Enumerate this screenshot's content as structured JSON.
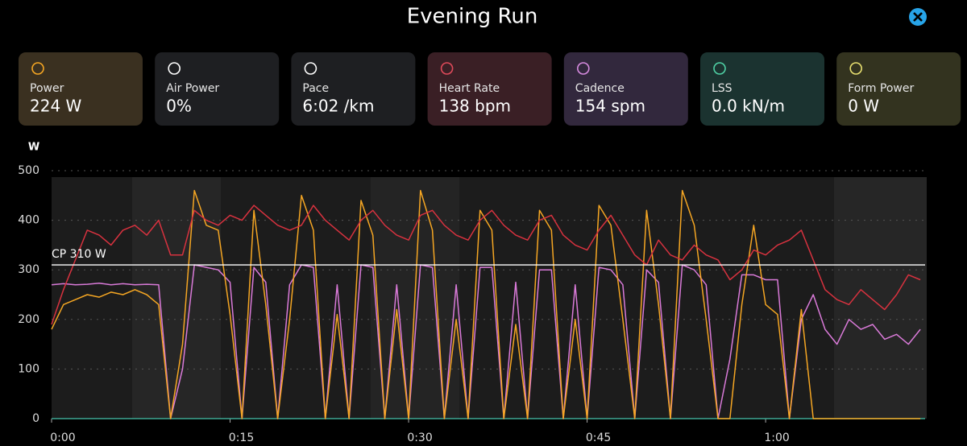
{
  "header": {
    "title": "Evening Run"
  },
  "metrics": [
    {
      "label": "Power",
      "value": "224 W"
    },
    {
      "label": "Air Power",
      "value": "0%"
    },
    {
      "label": "Pace",
      "value": "6:02 /km"
    },
    {
      "label": "Heart Rate",
      "value": "138 bpm"
    },
    {
      "label": "Cadence",
      "value": "154 spm"
    },
    {
      "label": "LSS",
      "value": "0.0 kN/m"
    },
    {
      "label": "Form Power",
      "value": "0 W"
    }
  ],
  "chart_data": {
    "type": "line",
    "y_label": "W",
    "x": [
      0,
      1,
      2,
      3,
      4,
      5,
      6,
      7,
      8,
      9,
      10,
      11,
      12,
      13,
      14,
      15,
      16,
      17,
      18,
      19,
      20,
      21,
      22,
      23,
      24,
      25,
      26,
      27,
      28,
      29,
      30,
      31,
      32,
      33,
      34,
      35,
      36,
      37,
      38,
      39,
      40,
      41,
      42,
      43,
      44,
      45,
      46,
      47,
      48,
      49,
      50,
      51,
      52,
      53,
      54,
      55,
      56,
      57,
      58,
      59,
      60,
      61,
      62,
      63,
      64,
      65,
      66,
      67,
      68,
      69,
      70,
      71,
      72,
      73
    ],
    "xlim": [
      0,
      73.4
    ],
    "xticks": [
      {
        "value": 0,
        "label": "0:00"
      },
      {
        "value": 15,
        "label": "0:15"
      },
      {
        "value": 30,
        "label": "0:30"
      },
      {
        "value": 45,
        "label": "0:45"
      },
      {
        "value": 60,
        "label": "1:00"
      }
    ],
    "ylim": [
      0,
      500
    ],
    "yticks": [
      0,
      100,
      200,
      300,
      400,
      500
    ],
    "grid": true,
    "cp": {
      "value": 310,
      "label": "CP 310 W"
    },
    "series": [
      {
        "color": "#d97ad8",
        "values": [
          270,
          272,
          270,
          271,
          273,
          270,
          272,
          270,
          271,
          270,
          0,
          100,
          310,
          305,
          300,
          275,
          0,
          305,
          275,
          0,
          270,
          310,
          305,
          0,
          270,
          0,
          310,
          305,
          0,
          270,
          0,
          310,
          305,
          0,
          270,
          0,
          305,
          305,
          0,
          275,
          0,
          300,
          300,
          0,
          270,
          0,
          305,
          300,
          270,
          0,
          300,
          275,
          0,
          310,
          300,
          270,
          0,
          120,
          290,
          290,
          280,
          280,
          0,
          200,
          250,
          180,
          150,
          200,
          180,
          190,
          160,
          170,
          150,
          180
        ]
      },
      {
        "color": "#f5a623",
        "values": [
          180,
          230,
          240,
          250,
          245,
          255,
          250,
          260,
          250,
          230,
          0,
          150,
          460,
          390,
          380,
          210,
          0,
          420,
          230,
          0,
          200,
          450,
          380,
          0,
          210,
          0,
          440,
          370,
          0,
          220,
          0,
          460,
          380,
          0,
          200,
          0,
          420,
          380,
          0,
          190,
          0,
          420,
          380,
          0,
          200,
          0,
          430,
          390,
          200,
          0,
          420,
          230,
          0,
          460,
          390,
          200,
          0,
          0,
          230,
          390,
          230,
          210,
          0,
          220,
          0,
          0,
          0,
          0,
          0,
          0,
          0,
          0,
          0,
          0
        ]
      },
      {
        "color": "#d8323f",
        "values": [
          190,
          260,
          320,
          380,
          370,
          350,
          380,
          390,
          370,
          400,
          330,
          330,
          420,
          400,
          390,
          410,
          400,
          430,
          410,
          390,
          380,
          390,
          430,
          400,
          380,
          360,
          400,
          420,
          390,
          370,
          360,
          410,
          420,
          390,
          370,
          360,
          400,
          420,
          390,
          370,
          360,
          400,
          410,
          370,
          350,
          340,
          380,
          410,
          370,
          330,
          310,
          360,
          330,
          320,
          350,
          330,
          320,
          280,
          300,
          340,
          330,
          350,
          360,
          380,
          320,
          260,
          240,
          230,
          260,
          240,
          220,
          250,
          290,
          280
        ]
      }
    ]
  }
}
